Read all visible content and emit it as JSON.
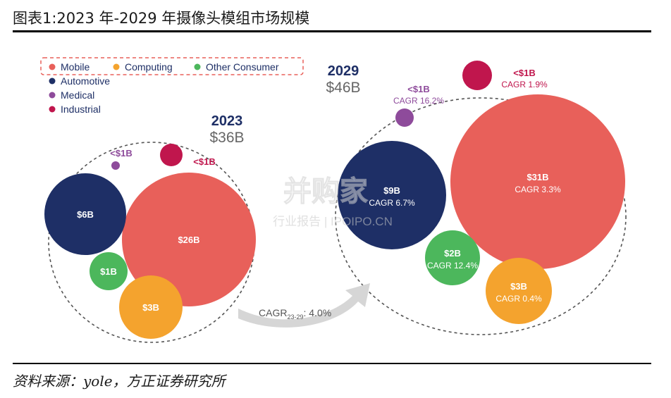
{
  "figure": {
    "title": "图表1:2023 年-2029 年摄像头模组市场规模",
    "source": "资料来源：yole，方正证券研究所"
  },
  "chart_data": {
    "type": "bubble",
    "legend": {
      "placement": "top-left",
      "items": [
        {
          "name": "Mobile",
          "color": "#e8605a"
        },
        {
          "name": "Computing",
          "color": "#f4a32e"
        },
        {
          "name": "Other Consumer",
          "color": "#4cb75c"
        },
        {
          "name": "Automotive",
          "color": "#1e2f66"
        },
        {
          "name": "Medical",
          "color": "#8e4b9b"
        },
        {
          "name": "Industrial",
          "color": "#c0164d"
        }
      ]
    },
    "groups": [
      {
        "year": "2023",
        "total": "$36B",
        "segments": [
          {
            "name": "Mobile",
            "value": 26,
            "label": "$26B",
            "cagr": ""
          },
          {
            "name": "Automotive",
            "value": 6,
            "label": "$6B",
            "cagr": ""
          },
          {
            "name": "Computing",
            "value": 3,
            "label": "$3B",
            "cagr": ""
          },
          {
            "name": "Other Consumer",
            "value": 1,
            "label": "$1B",
            "cagr": ""
          },
          {
            "name": "Medical",
            "value": 0.1,
            "label": "<$1B",
            "cagr": ""
          },
          {
            "name": "Industrial",
            "value": 0.5,
            "label": "<$1B",
            "cagr": ""
          }
        ]
      },
      {
        "year": "2029",
        "total": "$46B",
        "segments": [
          {
            "name": "Mobile",
            "value": 31,
            "label": "$31B",
            "cagr": "CAGR 3.3%"
          },
          {
            "name": "Automotive",
            "value": 9,
            "label": "$9B",
            "cagr": "CAGR 6.7%"
          },
          {
            "name": "Computing",
            "value": 3,
            "label": "$3B",
            "cagr": "CAGR 0.4%"
          },
          {
            "name": "Other Consumer",
            "value": 2,
            "label": "$2B",
            "cagr": "CAGR 12.4%"
          },
          {
            "name": "Medical",
            "value": 0.3,
            "label": "<$1B",
            "cagr": "CAGR 16.2%"
          },
          {
            "name": "Industrial",
            "value": 0.6,
            "label": "<$1B",
            "cagr": "CAGR 1.9%"
          }
        ]
      }
    ],
    "growth_arrow": {
      "label": "CAGR",
      "subscript": "23-29",
      "value": ": 4.0%"
    }
  },
  "watermark": {
    "main": "并购家",
    "sub": "行业报告 | IPOIPO.CN"
  }
}
